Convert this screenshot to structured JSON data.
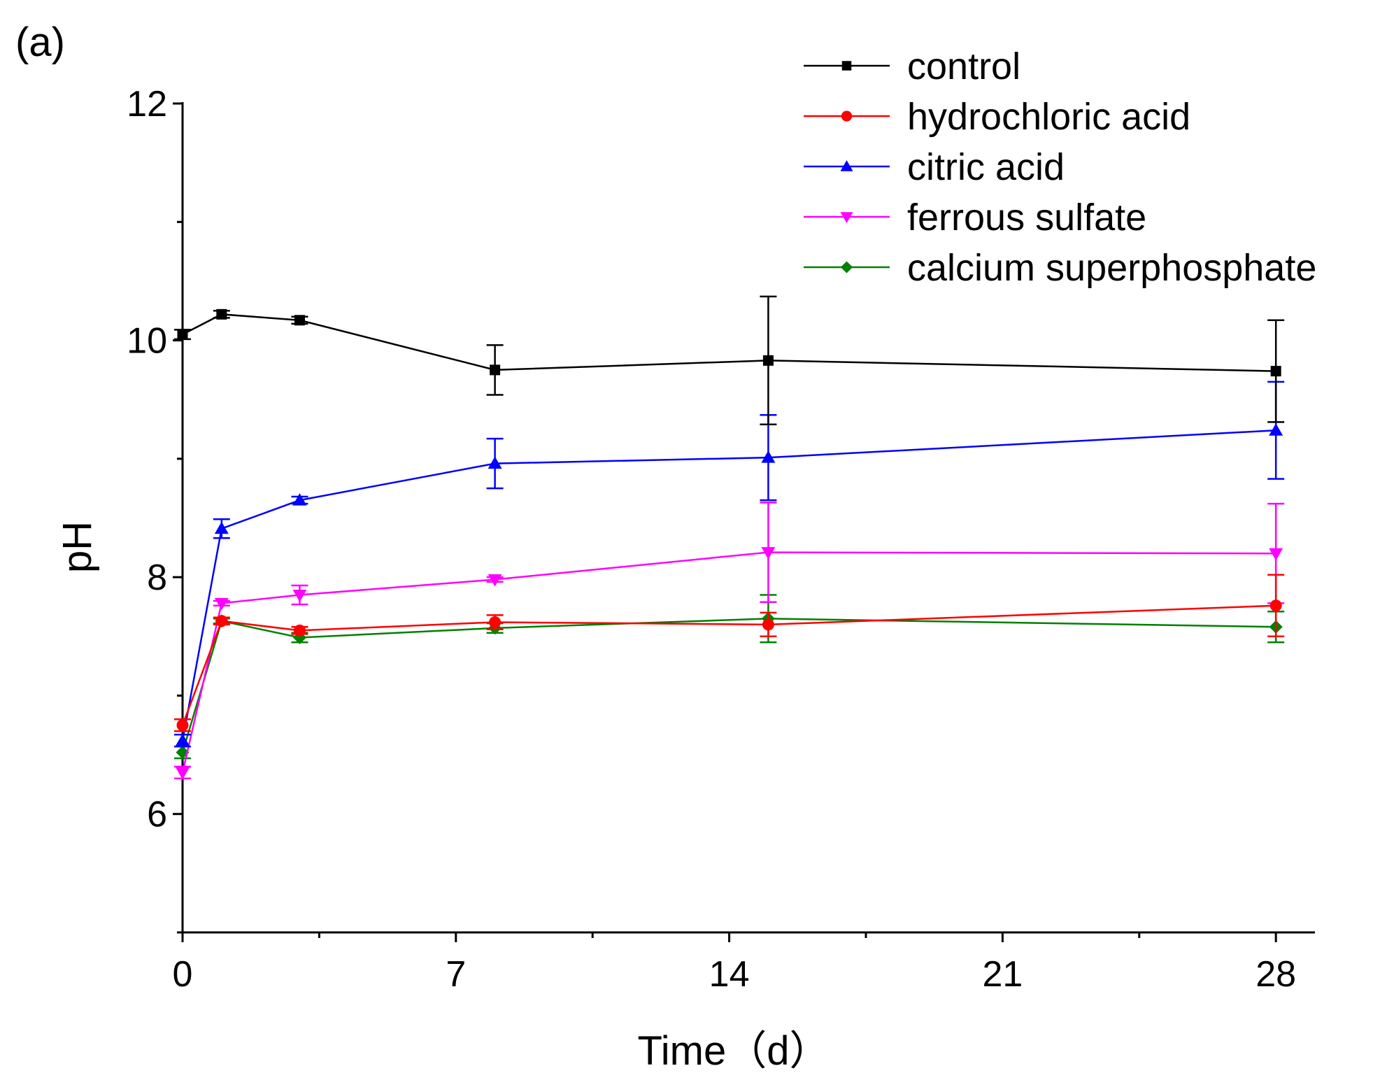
{
  "panel_label": "(a)",
  "chart_data": {
    "type": "line",
    "title": "",
    "xlabel": "Time（d）",
    "ylabel": "pH",
    "xlim": [
      0,
      29
    ],
    "ylim": [
      5,
      12
    ],
    "x_ticks": [
      0,
      7,
      14,
      21,
      28
    ],
    "x_tick_labels": [
      "0",
      "7",
      "14",
      "21",
      "28"
    ],
    "x_minor_ticks": [
      3.5,
      10.5,
      17.5,
      24.5
    ],
    "y_ticks": [
      6,
      8,
      10,
      12
    ],
    "y_tick_labels": [
      "6",
      "8",
      "10",
      "12"
    ],
    "y_minor_ticks": [
      5,
      7,
      9,
      11
    ],
    "grid": false,
    "legend_position": "top-right",
    "x": [
      0,
      1,
      3,
      8,
      15,
      28
    ],
    "series": [
      {
        "name": "control",
        "color": "#000000",
        "marker": "square",
        "values": [
          10.05,
          10.22,
          10.17,
          9.75,
          9.83,
          9.74
        ],
        "errors": [
          0.04,
          0.03,
          0.03,
          0.21,
          0.54,
          0.43
        ]
      },
      {
        "name": "hydrochloric acid",
        "color": "#ff0000",
        "marker": "circle",
        "values": [
          6.75,
          7.63,
          7.55,
          7.62,
          7.6,
          7.76
        ],
        "errors": [
          0.05,
          0.03,
          0.03,
          0.06,
          0.1,
          0.26
        ]
      },
      {
        "name": "citric acid",
        "color": "#0000ff",
        "marker": "triangle-up",
        "values": [
          6.62,
          8.41,
          8.65,
          8.96,
          9.01,
          9.24
        ],
        "errors": [
          0.05,
          0.08,
          0.03,
          0.21,
          0.36,
          0.41
        ]
      },
      {
        "name": "ferrous sulfate",
        "color": "#ff00ff",
        "marker": "triangle-down",
        "values": [
          6.35,
          7.78,
          7.85,
          7.98,
          8.21,
          8.2
        ],
        "errors": [
          0.05,
          0.02,
          0.08,
          0.02,
          0.42,
          0.42
        ]
      },
      {
        "name": "calcium superphosphate",
        "color": "#008000",
        "marker": "diamond",
        "values": [
          6.52,
          7.63,
          7.49,
          7.57,
          7.65,
          7.58
        ],
        "errors": [
          0.05,
          0.02,
          0.04,
          0.04,
          0.2,
          0.13
        ]
      }
    ]
  }
}
